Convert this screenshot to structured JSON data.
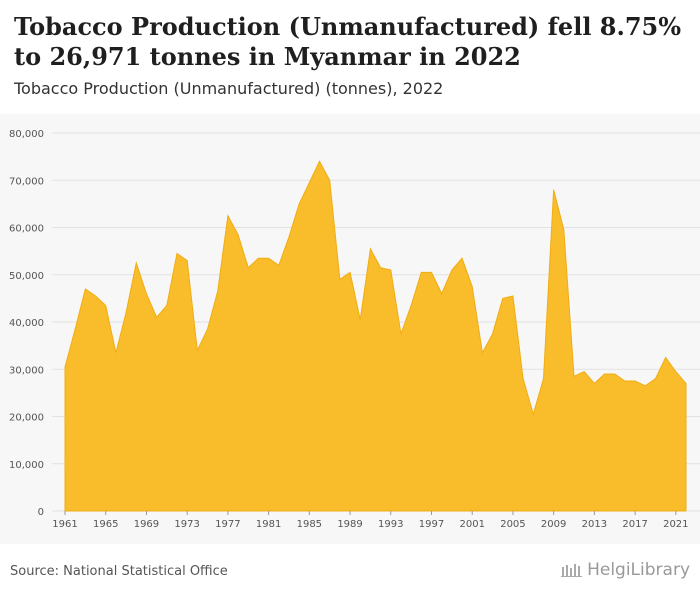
{
  "header": {
    "title": "Tobacco Production (Unmanufactured) fell 8.75% to 26,971 tonnes in Myanmar in 2022",
    "subtitle": "Tobacco Production (Unmanufactured) (tonnes), 2022"
  },
  "footer": {
    "source": "Source: National Statistical Office",
    "brand": "HelgiLibrary"
  },
  "colors": {
    "area_fill": "#f9bc2a",
    "area_stroke": "#f0ad14",
    "grid": "#e2e2e2",
    "plot_bg": "#f7f7f7"
  },
  "chart_data": {
    "type": "area",
    "xlabel": "",
    "ylabel": "",
    "ylim": [
      0,
      80000
    ],
    "y_ticks": [
      0,
      10000,
      20000,
      30000,
      40000,
      50000,
      60000,
      70000,
      80000
    ],
    "y_tick_labels": [
      "0",
      "10,000",
      "20,000",
      "30,000",
      "40,000",
      "50,000",
      "60,000",
      "70,000",
      "80,000"
    ],
    "x_ticks": [
      1961,
      1965,
      1969,
      1973,
      1977,
      1981,
      1985,
      1989,
      1993,
      1997,
      2001,
      2005,
      2009,
      2013,
      2017,
      2021
    ],
    "grid": "horizontal",
    "x": [
      1961,
      1962,
      1963,
      1964,
      1965,
      1966,
      1967,
      1968,
      1969,
      1970,
      1971,
      1972,
      1973,
      1974,
      1975,
      1976,
      1977,
      1978,
      1979,
      1980,
      1981,
      1982,
      1983,
      1984,
      1985,
      1986,
      1987,
      1988,
      1989,
      1990,
      1991,
      1992,
      1993,
      1994,
      1995,
      1996,
      1997,
      1998,
      1999,
      2000,
      2001,
      2002,
      2003,
      2004,
      2005,
      2006,
      2007,
      2008,
      2009,
      2010,
      2011,
      2012,
      2013,
      2014,
      2015,
      2016,
      2017,
      2018,
      2019,
      2020,
      2021,
      2022
    ],
    "values": [
      30500,
      38500,
      47000,
      45500,
      43500,
      33500,
      42000,
      52500,
      46000,
      41000,
      43500,
      54500,
      53000,
      34000,
      38500,
      46500,
      62500,
      58500,
      51500,
      53500,
      53500,
      52000,
      58000,
      65000,
      69500,
      74000,
      70000,
      49000,
      50500,
      40500,
      55500,
      51500,
      51000,
      37500,
      43500,
      50500,
      50500,
      46000,
      51000,
      53500,
      47500,
      33500,
      37500,
      45000,
      45500,
      28000,
      20500,
      28000,
      68000,
      59500,
      28500,
      29500,
      27000,
      29000,
      29000,
      27500,
      27500,
      26500,
      28000,
      32500,
      29500,
      26971
    ]
  }
}
